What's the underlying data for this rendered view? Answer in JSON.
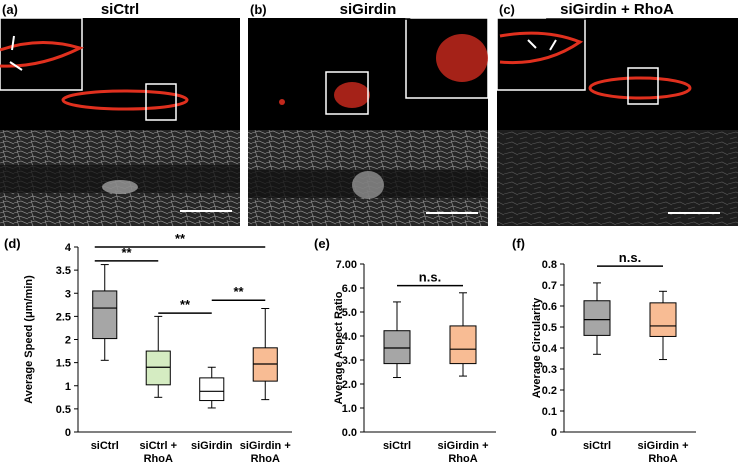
{
  "panels": [
    {
      "label": "(a)",
      "title": "siCtrl"
    },
    {
      "label": "(b)",
      "title": "siGirdin"
    },
    {
      "label": "(c)",
      "title": "siGirdin + RhoA"
    }
  ],
  "chart_data": [
    {
      "type": "box",
      "panel_label": "(d)",
      "y_label": "Average  Speed (μm/min)",
      "categories": [
        "siCtrl",
        "siCtrl + RhoA",
        "siGirdin",
        "siGirdin + RhoA"
      ],
      "colors": [
        "#a6a6a6",
        "#d5ecc2",
        "#ffffff",
        "#f8bc94"
      ],
      "boxes": [
        {
          "min": 1.55,
          "q1": 2.02,
          "median": 2.68,
          "q3": 3.05,
          "max": 3.62
        },
        {
          "min": 0.75,
          "q1": 1.02,
          "median": 1.4,
          "q3": 1.75,
          "max": 2.5
        },
        {
          "min": 0.52,
          "q1": 0.68,
          "median": 0.88,
          "q3": 1.17,
          "max": 1.4
        },
        {
          "min": 0.7,
          "q1": 1.1,
          "median": 1.47,
          "q3": 1.82,
          "max": 2.67
        }
      ],
      "ylim": [
        0,
        4
      ],
      "yticks": [
        0,
        0.5,
        1,
        1.5,
        2,
        2.5,
        3,
        3.5,
        4
      ],
      "annotations": [
        {
          "between": [
            "siCtrl",
            "siCtrl + RhoA"
          ],
          "y": 3.7,
          "label": "**"
        },
        {
          "between": [
            "siCtrl",
            "siGirdin + RhoA"
          ],
          "y": 4.0,
          "label": "**"
        },
        {
          "between": [
            "siCtrl + RhoA",
            "siGirdin"
          ],
          "y": 2.57,
          "label": "**"
        },
        {
          "between": [
            "siGirdin",
            "siGirdin + RhoA"
          ],
          "y": 2.85,
          "label": "**"
        }
      ]
    },
    {
      "type": "box",
      "panel_label": "(e)",
      "y_label": "Average Aspect Ratio",
      "categories": [
        "siCtrl",
        "siGirdin + RhoA"
      ],
      "colors": [
        "#a6a6a6",
        "#f8bc94"
      ],
      "boxes": [
        {
          "min": 2.27,
          "q1": 2.85,
          "median": 3.5,
          "q3": 4.22,
          "max": 5.42
        },
        {
          "min": 2.33,
          "q1": 2.85,
          "median": 3.45,
          "q3": 4.42,
          "max": 5.8
        }
      ],
      "ylim": [
        0,
        7
      ],
      "yticks": [
        {
          "value": 0,
          "label": "0.0"
        },
        {
          "value": 1,
          "label": "1.0"
        },
        {
          "value": 2,
          "label": "2.0"
        },
        {
          "value": 3,
          "label": "3.0"
        },
        {
          "value": 4,
          "label": "4.0"
        },
        {
          "value": 5,
          "label": "5.0"
        },
        {
          "value": 6,
          "label": "6.0"
        },
        {
          "value": 7,
          "label": "7.00"
        }
      ],
      "annotations": [
        {
          "between": [
            "siCtrl",
            "siGirdin + RhoA"
          ],
          "y": 6.1,
          "label": "n.s."
        }
      ]
    },
    {
      "type": "box",
      "panel_label": "(f)",
      "y_label": "Average Circularity",
      "categories": [
        "siCtrl",
        "siGirdin + RhoA"
      ],
      "colors": [
        "#a6a6a6",
        "#f8bc94"
      ],
      "boxes": [
        {
          "min": 0.37,
          "q1": 0.46,
          "median": 0.535,
          "q3": 0.625,
          "max": 0.71
        },
        {
          "min": 0.345,
          "q1": 0.455,
          "median": 0.505,
          "q3": 0.615,
          "max": 0.67
        }
      ],
      "ylim": [
        0,
        0.8
      ],
      "yticks": [
        0,
        0.1,
        0.2,
        0.3,
        0.4,
        0.5,
        0.6,
        0.7,
        0.8
      ],
      "annotations": [
        {
          "between": [
            "siCtrl",
            "siGirdin + RhoA"
          ],
          "y": 0.79,
          "label": "n.s."
        }
      ]
    }
  ]
}
